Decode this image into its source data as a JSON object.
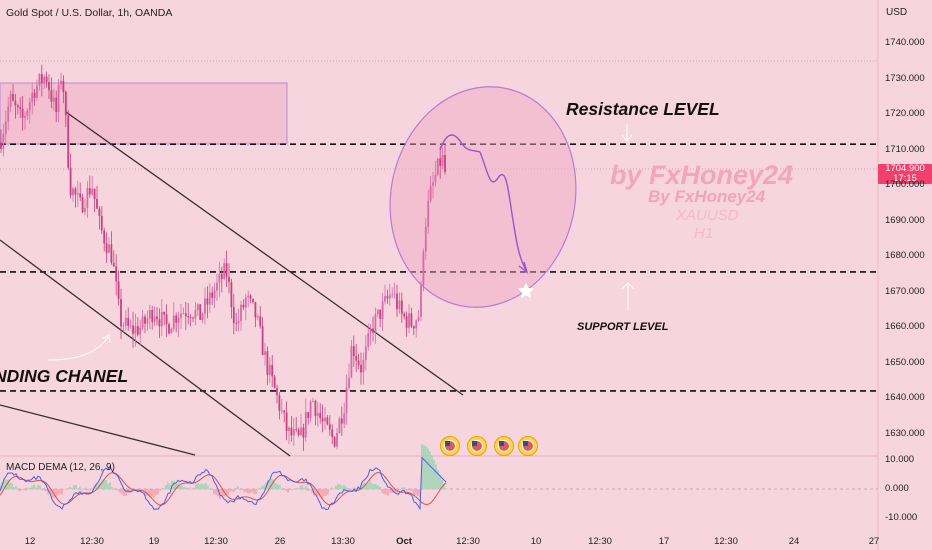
{
  "header": {
    "symbol_title": "Gold Spot / U.S. Dollar, 1h, OANDA",
    "currency": "USD"
  },
  "price_axis": {
    "ticks": [
      "1740.000",
      "1730.000",
      "1720.000",
      "1710.000",
      "1700.000",
      "1690.000",
      "1680.000",
      "1670.000",
      "1660.000",
      "1650.000",
      "1640.000",
      "1630.000"
    ],
    "tick_values": [
      1740,
      1730,
      1720,
      1710,
      1700,
      1690,
      1680,
      1670,
      1660,
      1650,
      1640,
      1630
    ],
    "current_price": "1704.900",
    "countdown": "17:15"
  },
  "macd_axis": {
    "ticks": [
      "10.000",
      "0.000",
      "-10.000"
    ],
    "tick_values": [
      10,
      0,
      -10
    ]
  },
  "time_axis": {
    "ticks": [
      {
        "label": "12",
        "bold": false
      },
      {
        "label": "12:30",
        "bold": false
      },
      {
        "label": "19",
        "bold": false
      },
      {
        "label": "12:30",
        "bold": false
      },
      {
        "label": "26",
        "bold": false
      },
      {
        "label": "13:30",
        "bold": false
      },
      {
        "label": "Oct",
        "bold": true
      },
      {
        "label": "12:30",
        "bold": false
      },
      {
        "label": "10",
        "bold": false
      },
      {
        "label": "12:30",
        "bold": false
      },
      {
        "label": "17",
        "bold": false
      },
      {
        "label": "12:30",
        "bold": false
      },
      {
        "label": "24",
        "bold": false
      },
      {
        "label": "27",
        "bold": false
      }
    ]
  },
  "macd": {
    "title": "MACD DEMA (12, 26, 9)"
  },
  "levels": {
    "resistance": 1711.5,
    "support": 1675.5,
    "lower": 1642
  },
  "annotations": {
    "resistance_label": "Resistance LEVEL",
    "support_label": "SUPPORT LEVEL",
    "channel_label": "NDING CHANEL"
  },
  "watermark": {
    "line1": "by FxHoney24",
    "line2": "By FxHoney24",
    "line3": "XAUUSD",
    "line4": "H1"
  },
  "colors": {
    "background": "#f6d5de",
    "candle": "#d64f97",
    "projection": "#9a55c8",
    "price_tag": "#f23f6b",
    "macd_line": "#4a61e0",
    "signal_line": "#e0504e"
  },
  "events": {
    "count": 4
  }
}
